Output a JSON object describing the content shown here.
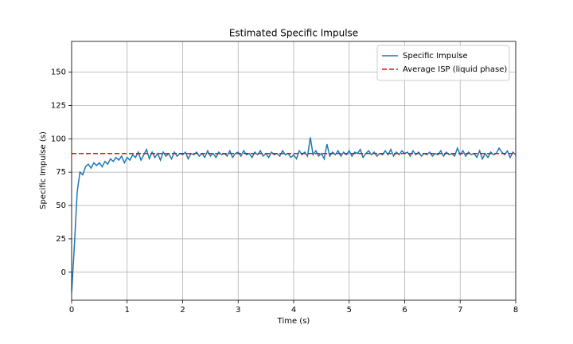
{
  "chart_data": {
    "type": "line",
    "title": "Estimated Specific Impulse",
    "x_label": "Time (s)",
    "y_label": "Specific Impulse (s)",
    "x": [
      0,
      0.05,
      0.1,
      0.15,
      0.2,
      0.25,
      0.3,
      0.35,
      0.4,
      0.45,
      0.5,
      0.55,
      0.6,
      0.65,
      0.7,
      0.75,
      0.8,
      0.85,
      0.9,
      0.95,
      1.0,
      1.05,
      1.1,
      1.15,
      1.2,
      1.25,
      1.3,
      1.35,
      1.4,
      1.45,
      1.5,
      1.55,
      1.6,
      1.65,
      1.7,
      1.75,
      1.8,
      1.85,
      1.9,
      1.95,
      2.0,
      2.05,
      2.1,
      2.15,
      2.2,
      2.25,
      2.3,
      2.35,
      2.4,
      2.45,
      2.5,
      2.55,
      2.6,
      2.65,
      2.7,
      2.75,
      2.8,
      2.85,
      2.9,
      2.95,
      3.0,
      3.05,
      3.1,
      3.15,
      3.2,
      3.25,
      3.3,
      3.35,
      3.4,
      3.45,
      3.5,
      3.55,
      3.6,
      3.65,
      3.7,
      3.75,
      3.8,
      3.85,
      3.9,
      3.95,
      4.0,
      4.05,
      4.1,
      4.15,
      4.2,
      4.25,
      4.3,
      4.35,
      4.4,
      4.45,
      4.5,
      4.55,
      4.6,
      4.65,
      4.7,
      4.75,
      4.8,
      4.85,
      4.9,
      4.95,
      5.0,
      5.05,
      5.1,
      5.15,
      5.2,
      5.25,
      5.3,
      5.35,
      5.4,
      5.45,
      5.5,
      5.55,
      5.6,
      5.65,
      5.7,
      5.75,
      5.8,
      5.85,
      5.9,
      5.95,
      6.0,
      6.05,
      6.1,
      6.15,
      6.2,
      6.25,
      6.3,
      6.35,
      6.4,
      6.45,
      6.5,
      6.55,
      6.6,
      6.65,
      6.7,
      6.75,
      6.8,
      6.85,
      6.9,
      6.95,
      7.0,
      7.05,
      7.1,
      7.15,
      7.2,
      7.25,
      7.3,
      7.35,
      7.4,
      7.45,
      7.5,
      7.55,
      7.6,
      7.65,
      7.7,
      7.75,
      7.8,
      7.85,
      7.9,
      7.95,
      8.0
    ],
    "series": [
      {
        "name": "Specific Impulse",
        "color": "#1f77b4",
        "values": [
          -15,
          20,
          60,
          75,
          73,
          79,
          81,
          78,
          82,
          80,
          82,
          79,
          83,
          81,
          85,
          83,
          86,
          84,
          87,
          82,
          86,
          84,
          88,
          86,
          90,
          84,
          88,
          92,
          85,
          90,
          86,
          89,
          84,
          90,
          87,
          89,
          85,
          90,
          87,
          89,
          88,
          90,
          85,
          89,
          88,
          90,
          87,
          89,
          86,
          91,
          87,
          89,
          86,
          90,
          88,
          89,
          87,
          91,
          86,
          89,
          90,
          87,
          91,
          88,
          89,
          86,
          90,
          88,
          91,
          87,
          89,
          86,
          90,
          88,
          89,
          87,
          91,
          88,
          89,
          86,
          88,
          85,
          91,
          88,
          90,
          87,
          101,
          88,
          91,
          87,
          89,
          85,
          96,
          87,
          90,
          88,
          91,
          87,
          90,
          88,
          91,
          87,
          90,
          89,
          92,
          86,
          89,
          91,
          88,
          90,
          87,
          89,
          88,
          91,
          88,
          92,
          87,
          90,
          88,
          91,
          89,
          90,
          87,
          91,
          88,
          90,
          87,
          89,
          88,
          90,
          87,
          89,
          88,
          91,
          87,
          90,
          88,
          89,
          87,
          93,
          88,
          91,
          87,
          90,
          88,
          89,
          86,
          91,
          85,
          89,
          86,
          90,
          88,
          89,
          93,
          90,
          88,
          91,
          86,
          90,
          88
        ]
      }
    ],
    "hlines": [
      {
        "name": "Average ISP (liquid phase)",
        "value": 89,
        "color": "#ff0000",
        "style": "dashed"
      }
    ],
    "xlim": [
      0,
      8
    ],
    "ylim": [
      -21,
      173
    ],
    "xticks": [
      0,
      1,
      2,
      3,
      4,
      5,
      6,
      7,
      8
    ],
    "yticks": [
      0,
      25,
      50,
      75,
      100,
      125,
      150
    ],
    "grid": true,
    "legend": "upper right"
  }
}
